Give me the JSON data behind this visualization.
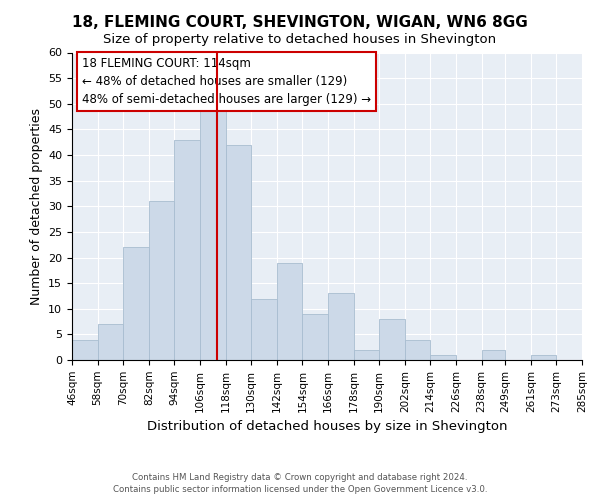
{
  "title": "18, FLEMING COURT, SHEVINGTON, WIGAN, WN6 8GG",
  "subtitle": "Size of property relative to detached houses in Shevington",
  "xlabel": "Distribution of detached houses by size in Shevington",
  "ylabel": "Number of detached properties",
  "bin_edges": [
    46,
    58,
    70,
    82,
    94,
    106,
    118,
    130,
    142,
    154,
    166,
    178,
    190,
    202,
    214,
    226,
    238,
    249,
    261,
    273,
    285
  ],
  "bar_heights": [
    4,
    7,
    22,
    31,
    43,
    49,
    42,
    12,
    19,
    9,
    13,
    2,
    8,
    4,
    1,
    0,
    2,
    0,
    1,
    0
  ],
  "bar_color": "#ccd9e8",
  "bar_edgecolor": "#a8bdd0",
  "vline_x": 114,
  "vline_color": "#cc0000",
  "ylim": [
    0,
    60
  ],
  "yticks": [
    0,
    5,
    10,
    15,
    20,
    25,
    30,
    35,
    40,
    45,
    50,
    55,
    60
  ],
  "annotation_title": "18 FLEMING COURT: 114sqm",
  "annotation_line1": "← 48% of detached houses are smaller (129)",
  "annotation_line2": "48% of semi-detached houses are larger (129) →",
  "footer1": "Contains HM Land Registry data © Crown copyright and database right 2024.",
  "footer2": "Contains public sector information licensed under the Open Government Licence v3.0.",
  "title_fontsize": 11,
  "subtitle_fontsize": 9.5,
  "tick_labels": [
    "46sqm",
    "58sqm",
    "70sqm",
    "82sqm",
    "94sqm",
    "106sqm",
    "118sqm",
    "130sqm",
    "142sqm",
    "154sqm",
    "166sqm",
    "178sqm",
    "190sqm",
    "202sqm",
    "214sqm",
    "226sqm",
    "238sqm",
    "249sqm",
    "261sqm",
    "273sqm",
    "285sqm"
  ],
  "background_color": "#e8eef5"
}
